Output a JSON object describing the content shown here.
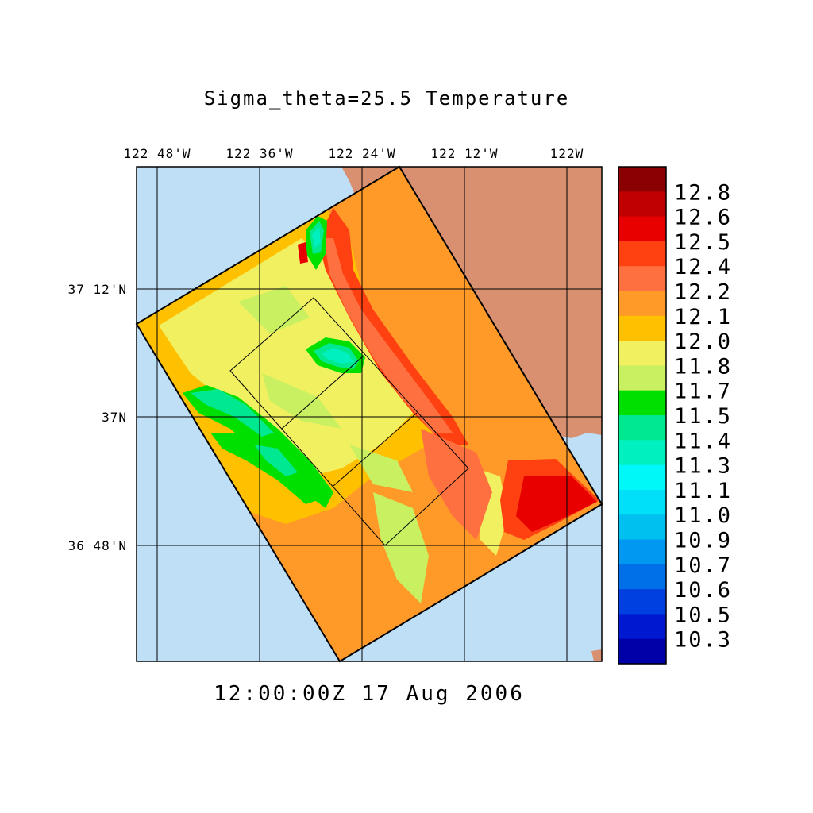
{
  "title": "Sigma_theta=25.5 Temperature",
  "timestamp": "12:00:00Z  17 Aug 2006",
  "lon_labels": [
    "122 48'W",
    "122 36'W",
    "122 24'W",
    "122 12'W",
    "122W"
  ],
  "lat_labels": [
    "37 12'N",
    "37N",
    "36 48'N"
  ],
  "colorbar": {
    "labels": [
      "12.8",
      "12.6",
      "12.5",
      "12.4",
      "12.2",
      "12.1",
      "12.0",
      "11.8",
      "11.7",
      "11.5",
      "11.4",
      "11.3",
      "11.1",
      "11.0",
      "10.9",
      "10.7",
      "10.6",
      "10.5",
      "10.3"
    ],
    "colors": [
      "#8b0000",
      "#c00000",
      "#e80000",
      "#ff4010",
      "#ff7040",
      "#ff9a28",
      "#ffc000",
      "#f0f060",
      "#c8f060",
      "#00e000",
      "#00e890",
      "#00f0c0",
      "#00f8f8",
      "#00e0f8",
      "#00c0f0",
      "#0098f0",
      "#0070e8",
      "#0040e0",
      "#0018d0",
      "#0000a8"
    ]
  },
  "colors": {
    "ocean": "#bfdff7",
    "land": "#d89070",
    "grid": "#000000"
  }
}
